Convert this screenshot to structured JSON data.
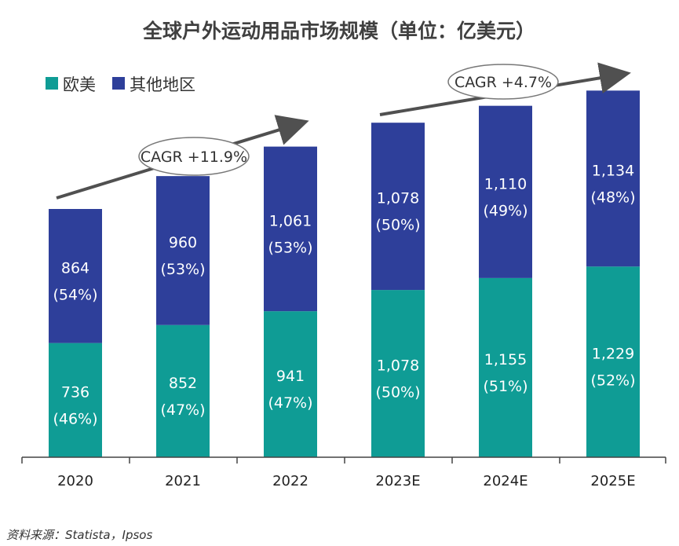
{
  "chart_data": {
    "type": "bar",
    "stacked": true,
    "title": "全球户外运动用品市场规模（单位：亿美元）",
    "categories": [
      "2020",
      "2021",
      "2022",
      "2023E",
      "2024E",
      "2025E"
    ],
    "series": [
      {
        "name": "欧美",
        "color": "#0F9C95",
        "values": [
          736,
          852,
          941,
          1078,
          1155,
          1229
        ],
        "labels": [
          "736",
          "852",
          "941",
          "1,078",
          "1,155",
          "1,229"
        ],
        "shares": [
          "(46%)",
          "(47%)",
          "(47%)",
          "(50%)",
          "(51%)",
          "(52%)"
        ]
      },
      {
        "name": "其他地区",
        "color": "#2E3F9A",
        "values": [
          864,
          960,
          1061,
          1078,
          1110,
          1134
        ],
        "labels": [
          "864",
          "960",
          "1,061",
          "1,078",
          "1,110",
          "1,134"
        ],
        "shares": [
          "(54%)",
          "(53%)",
          "(53%)",
          "(50%)",
          "(49%)",
          "(48%)"
        ]
      }
    ],
    "legend_position": "top-left",
    "grid": false,
    "annotations": [
      {
        "text": "CAGR +11.9%",
        "from": "2020",
        "to": "2022"
      },
      {
        "text": "CAGR +4.7%",
        "from": "2023E",
        "to": "2025E"
      }
    ],
    "source": "资料来源：Statista，Ipsos"
  }
}
